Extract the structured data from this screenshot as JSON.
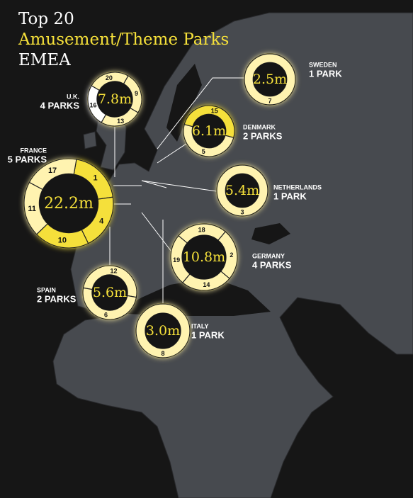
{
  "title": [
    "Top 20",
    "Amusement/Theme Parks",
    "EMEA"
  ],
  "countries": [
    {
      "name": "SWEDEN",
      "parks": "1 PARK",
      "total": "2.5m",
      "ranks": [
        "7"
      ],
      "colors": [
        "#fff3b0"
      ]
    },
    {
      "name": "U.K.",
      "parks": "4 PARKS",
      "total": "7.8m",
      "ranks": [
        "20",
        "9",
        "13",
        "16"
      ],
      "colors": [
        "#fff3b0",
        "#fff3b0",
        "#fff3b0",
        "#ffffff"
      ]
    },
    {
      "name": "DENMARK",
      "parks": "2 PARKS",
      "total": "6.1m",
      "ranks": [
        "15",
        "5"
      ],
      "colors": [
        "#f5e03a",
        "#fff3b0"
      ]
    },
    {
      "name": "FRANCE",
      "parks": "5 PARKS",
      "total": "22.2m",
      "ranks": [
        "1",
        "4",
        "10",
        "11",
        "17"
      ],
      "colors": [
        "#f5e03a",
        "#f5e03a",
        "#f5e03a",
        "#fff3b0",
        "#fff3b0"
      ]
    },
    {
      "name": "NETHERLANDS",
      "parks": "1 PARK",
      "total": "5.4m",
      "ranks": [
        "3"
      ],
      "colors": [
        "#fff3b0"
      ]
    },
    {
      "name": "GERMANY",
      "parks": "4 PARKS",
      "total": "10.8m",
      "ranks": [
        "18",
        "2",
        "14",
        "19"
      ],
      "colors": [
        "#fff3b0",
        "#fff3b0",
        "#fff3b0",
        "#fff3b0"
      ]
    },
    {
      "name": "SPAIN",
      "parks": "2 PARKS",
      "total": "5.6m",
      "ranks": [
        "12",
        "6"
      ],
      "colors": [
        "#fff3b0",
        "#fff3b0"
      ]
    },
    {
      "name": "ITALY",
      "parks": "1 PARK",
      "total": "3.0m",
      "ranks": [
        "8"
      ],
      "colors": [
        "#fff3b0"
      ]
    }
  ]
}
